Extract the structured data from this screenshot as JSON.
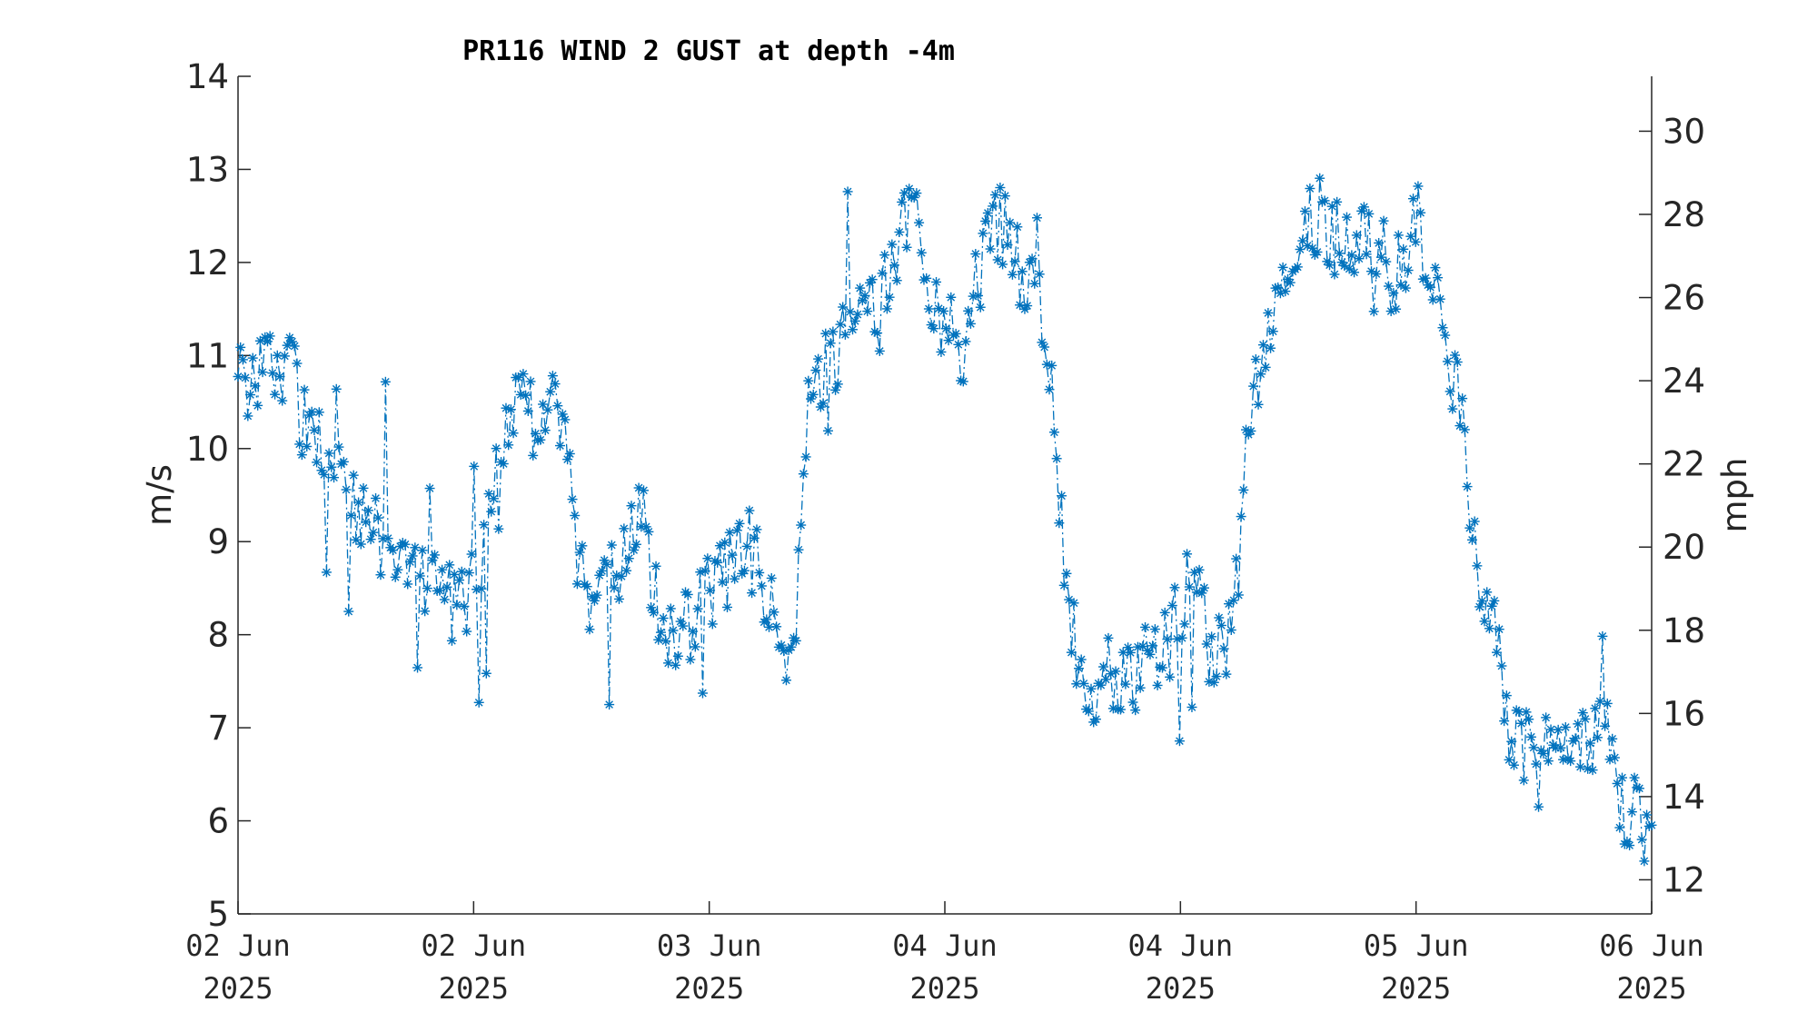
{
  "chart_data": {
    "type": "line",
    "title": "PR116 WIND 2 GUST at depth -4m",
    "ylabel": "m/s",
    "ylabel_right": "mph",
    "ylim": [
      5,
      14
    ],
    "ylim_right": [
      11.18,
      31.32
    ],
    "yticks": [
      5,
      6,
      7,
      8,
      9,
      10,
      11,
      12,
      13,
      14
    ],
    "yticks_right": [
      12,
      14,
      16,
      18,
      20,
      22,
      24,
      26,
      28,
      30
    ],
    "x_range_days": [
      0,
      4.0
    ],
    "xticks": [
      {
        "line1": "02 Jun",
        "line2": "2025"
      },
      {
        "line1": "02 Jun",
        "line2": "2025"
      },
      {
        "line1": "03 Jun",
        "line2": "2025"
      },
      {
        "line1": "04 Jun",
        "line2": "2025"
      },
      {
        "line1": "04 Jun",
        "line2": "2025"
      },
      {
        "line1": "05 Jun",
        "line2": "2025"
      },
      {
        "line1": "06 Jun",
        "line2": "2025"
      }
    ],
    "color": "#0072BD",
    "marker": "asterisk",
    "line_style": "dash-dot",
    "grid": false,
    "series": [
      {
        "keyframes": [
          [
            0.0,
            10.7
          ],
          [
            0.05,
            10.8
          ],
          [
            0.11,
            11.0
          ],
          [
            0.15,
            10.9
          ],
          [
            0.19,
            10.2
          ],
          [
            0.26,
            9.9
          ],
          [
            0.33,
            9.4
          ],
          [
            0.42,
            8.95
          ],
          [
            0.5,
            8.7
          ],
          [
            0.56,
            8.6
          ],
          [
            0.62,
            8.25
          ],
          [
            0.68,
            8.7
          ],
          [
            0.72,
            9.5
          ],
          [
            0.77,
            10.5
          ],
          [
            0.83,
            10.3
          ],
          [
            0.89,
            10.5
          ],
          [
            0.93,
            9.8
          ],
          [
            0.98,
            8.4
          ],
          [
            1.02,
            8.2
          ],
          [
            1.08,
            8.8
          ],
          [
            1.14,
            9.3
          ],
          [
            1.2,
            8.1
          ],
          [
            1.25,
            7.9
          ],
          [
            1.3,
            8.3
          ],
          [
            1.35,
            8.6
          ],
          [
            1.4,
            8.7
          ],
          [
            1.45,
            8.9
          ],
          [
            1.5,
            8.3
          ],
          [
            1.55,
            7.8
          ],
          [
            1.59,
            8.6
          ],
          [
            1.61,
            10.4
          ],
          [
            1.68,
            11.0
          ],
          [
            1.75,
            11.3
          ],
          [
            1.81,
            11.4
          ],
          [
            1.84,
            11.8
          ],
          [
            1.87,
            12.2
          ],
          [
            1.91,
            12.7
          ],
          [
            1.95,
            11.8
          ],
          [
            2.0,
            11.4
          ],
          [
            2.05,
            11.0
          ],
          [
            2.09,
            11.8
          ],
          [
            2.14,
            12.5
          ],
          [
            2.18,
            12.2
          ],
          [
            2.23,
            11.7
          ],
          [
            2.27,
            11.5
          ],
          [
            2.31,
            10.3
          ],
          [
            2.34,
            8.5
          ],
          [
            2.38,
            7.7
          ],
          [
            2.42,
            7.5
          ],
          [
            2.46,
            7.7
          ],
          [
            2.5,
            7.55
          ],
          [
            2.55,
            7.6
          ],
          [
            2.6,
            7.8
          ],
          [
            2.64,
            8.0
          ],
          [
            2.68,
            8.5
          ],
          [
            2.71,
            8.4
          ],
          [
            2.75,
            7.9
          ],
          [
            2.79,
            7.8
          ],
          [
            2.82,
            8.1
          ],
          [
            2.85,
            10.0
          ],
          [
            2.9,
            11.2
          ],
          [
            2.95,
            11.9
          ],
          [
            3.0,
            12.35
          ],
          [
            3.05,
            12.5
          ],
          [
            3.1,
            12.3
          ],
          [
            3.15,
            12.2
          ],
          [
            3.2,
            12.3
          ],
          [
            3.24,
            12.25
          ],
          [
            3.26,
            11.5
          ],
          [
            3.3,
            12.1
          ],
          [
            3.34,
            12.4
          ],
          [
            3.38,
            12.0
          ],
          [
            3.41,
            11.3
          ],
          [
            3.45,
            10.5
          ],
          [
            3.49,
            9.4
          ],
          [
            3.52,
            8.4
          ],
          [
            3.56,
            7.9
          ],
          [
            3.6,
            7.0
          ],
          [
            3.65,
            6.8
          ],
          [
            3.7,
            7.1
          ],
          [
            3.75,
            6.9
          ],
          [
            3.79,
            6.6
          ],
          [
            3.83,
            6.9
          ],
          [
            3.86,
            7.6
          ],
          [
            3.9,
            6.2
          ],
          [
            3.94,
            6.0
          ],
          [
            3.98,
            6.1
          ],
          [
            4.0,
            6.0
          ]
        ]
      }
    ]
  }
}
